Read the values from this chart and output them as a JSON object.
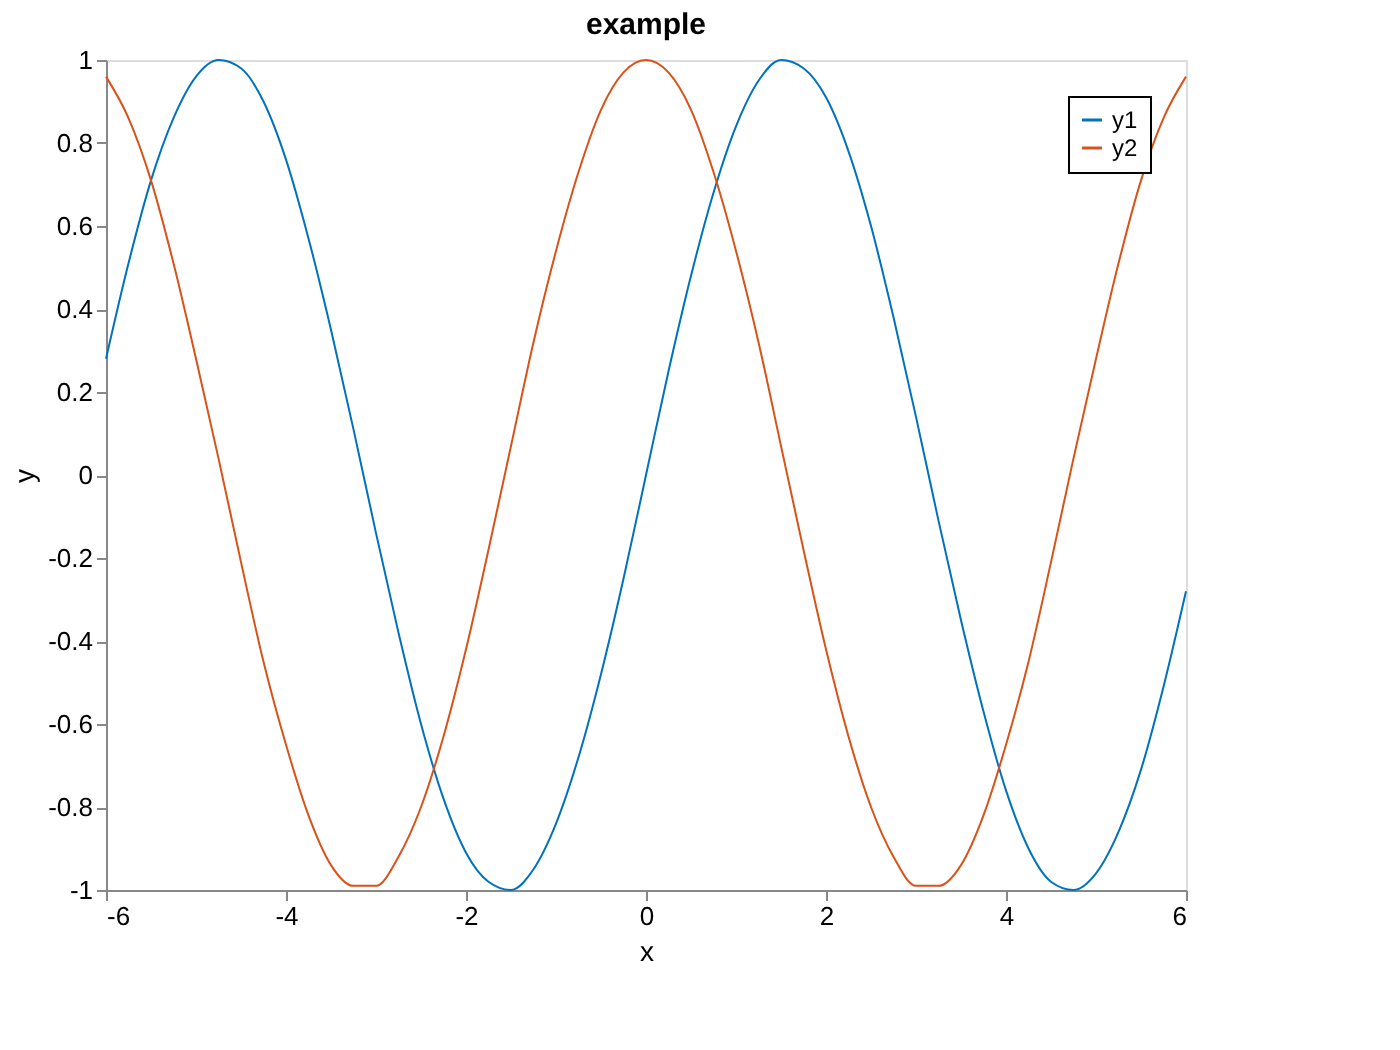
{
  "chart_data": {
    "type": "line",
    "title": "example",
    "xlabel": "x",
    "ylabel": "y",
    "x": [
      -6,
      -5.75,
      -5.5,
      -5.25,
      -5,
      -4.75,
      -4.5,
      -4.25,
      -4,
      -3.75,
      -3.5,
      -3.25,
      -3,
      -2.75,
      -2.5,
      -2.25,
      -2,
      -1.75,
      -1.5,
      -1.25,
      -1,
      -0.75,
      -0.5,
      -0.25,
      0,
      0.25,
      0.5,
      0.75,
      1,
      1.25,
      1.5,
      1.75,
      2,
      2.25,
      2.5,
      2.75,
      3,
      3.25,
      3.5,
      3.75,
      4,
      4.25,
      4.5,
      4.75,
      5,
      5.25,
      5.5,
      5.75,
      6
    ],
    "series": [
      {
        "name": "y1",
        "color": "#0072bd",
        "values": [
          0.28,
          0.51,
          0.71,
          0.86,
          0.96,
          1.0,
          0.98,
          0.9,
          0.76,
          0.57,
          0.35,
          0.11,
          -0.14,
          -0.38,
          -0.6,
          -0.78,
          -0.91,
          -0.98,
          -1.0,
          -0.95,
          -0.84,
          -0.68,
          -0.48,
          -0.25,
          0,
          0.25,
          0.48,
          0.68,
          0.84,
          0.95,
          1.0,
          0.98,
          0.91,
          0.78,
          0.6,
          0.38,
          0.14,
          -0.11,
          -0.35,
          -0.57,
          -0.76,
          -0.9,
          -0.98,
          -1.0,
          -0.96,
          -0.86,
          -0.71,
          -0.51,
          -0.28
        ]
      },
      {
        "name": "y2",
        "color": "#d95319",
        "values": [
          0.96,
          0.86,
          0.71,
          0.51,
          0.28,
          0.04,
          -0.21,
          -0.45,
          -0.65,
          -0.82,
          -0.94,
          -0.99,
          -0.99,
          -0.92,
          -0.8,
          -0.63,
          -0.42,
          -0.18,
          0.07,
          0.32,
          0.54,
          0.73,
          0.88,
          0.97,
          1,
          0.97,
          0.88,
          0.73,
          0.54,
          0.32,
          0.07,
          -0.18,
          -0.42,
          -0.63,
          -0.8,
          -0.92,
          -0.99,
          -0.99,
          -0.94,
          -0.82,
          -0.65,
          -0.45,
          -0.21,
          0.04,
          0.28,
          0.51,
          0.71,
          0.86,
          0.96
        ]
      }
    ],
    "xlim": [
      -6,
      6
    ],
    "xticks": [
      -6,
      -4,
      -2,
      0,
      2,
      4,
      6
    ],
    "ylim": [
      -1,
      1
    ],
    "yticks": [
      -1,
      -0.8,
      -0.6,
      -0.4,
      -0.2,
      0,
      0.2,
      0.4,
      0.6,
      0.8,
      1
    ],
    "grid": false,
    "legend": "top right",
    "marker": "none",
    "line_style": "solid"
  }
}
